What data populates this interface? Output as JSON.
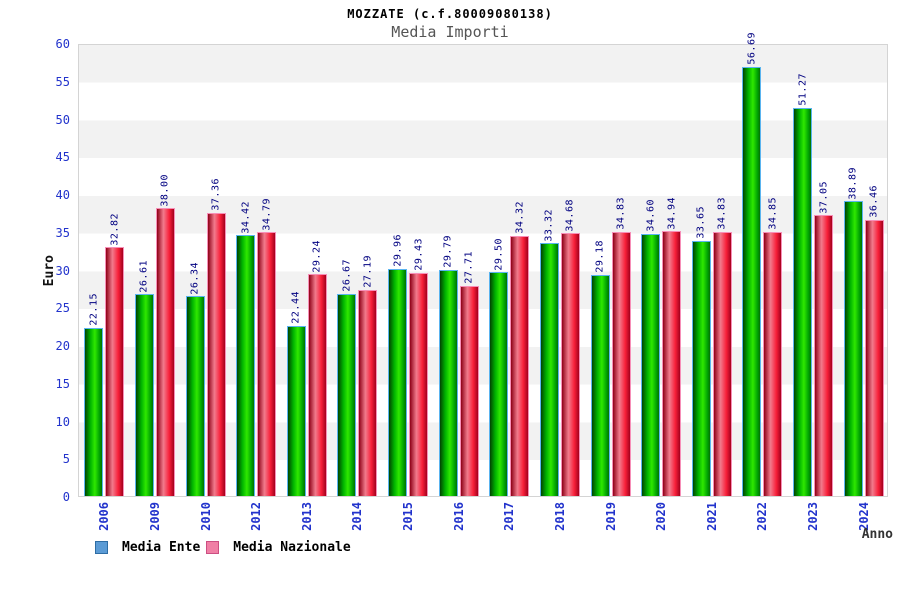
{
  "chart_data": {
    "type": "bar",
    "title": "MOZZATE (c.f.80009080138)",
    "subtitle": "Media Importi",
    "xlabel": "Anno",
    "ylabel": "Euro",
    "ylim": [
      0,
      60
    ],
    "ytick_step": 5,
    "grid": "horizontal-bands-alternating",
    "legend_position": "bottom-left",
    "value_label_format": "2-decimals-rotated-90",
    "categories": [
      "2006",
      "2009",
      "2010",
      "2012",
      "2013",
      "2014",
      "2015",
      "2016",
      "2017",
      "2018",
      "2019",
      "2020",
      "2021",
      "2022",
      "2023",
      "2024"
    ],
    "series": [
      {
        "name": "Media Ente",
        "values": [
          22.15,
          26.61,
          26.34,
          34.42,
          22.44,
          26.67,
          29.96,
          29.79,
          29.5,
          33.32,
          29.18,
          34.6,
          33.65,
          56.69,
          51.27,
          38.89
        ]
      },
      {
        "name": "Media Nazionale",
        "values": [
          32.82,
          38.0,
          37.36,
          34.79,
          29.24,
          27.19,
          29.43,
          27.71,
          34.32,
          34.68,
          34.83,
          34.94,
          34.83,
          34.85,
          37.05,
          36.46
        ]
      }
    ]
  },
  "colors": {
    "media_ente_bar": "#00b400",
    "media_ente_bar_cap": "#5ab4f0",
    "media_nazionale_bar": "#f8203a",
    "media_nazionale_bar_cap": "#f78fb8",
    "media_ente_legend_swatch": "#5b9bd5",
    "media_ente_legend_border": "#2e6da4",
    "media_nazionale_legend_swatch": "#f07fa5",
    "media_nazionale_legend_border": "#cc4e82",
    "axis_tick_label": "#2233cc",
    "value_label": "#000080",
    "band_gray": "#f2f2f2",
    "band_white": "#ffffff",
    "plot_border": "#d4d4d4",
    "title_text": "#000000",
    "subtitle_text": "#555555"
  }
}
